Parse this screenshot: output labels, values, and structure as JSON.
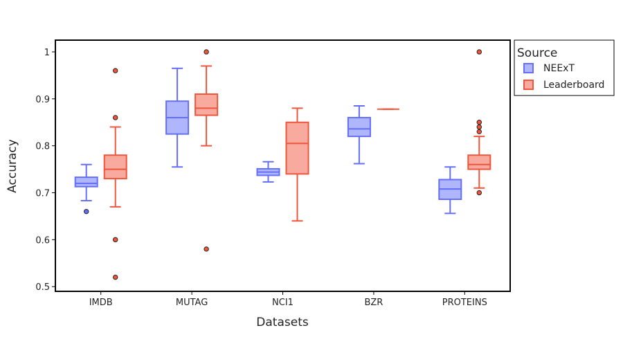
{
  "chart_data": {
    "type": "box",
    "title": "",
    "xlabel": "Datasets",
    "ylabel": "Accuracy",
    "ylim": [
      0.49,
      1.025
    ],
    "yticks": [
      0.5,
      0.6,
      0.7,
      0.8,
      0.9,
      1
    ],
    "ytick_labels": [
      "0.5",
      "0.6",
      "0.7",
      "0.8",
      "0.9",
      "1"
    ],
    "categories": [
      "IMDB",
      "MUTAG",
      "NCI1",
      "BZR",
      "PROTEINS"
    ],
    "legend": {
      "title": "Source",
      "position": "right"
    },
    "series": [
      {
        "name": "NEExT",
        "line_color": "#636efa",
        "fill_color": "#b0b6fc",
        "boxes": [
          {
            "category": "IMDB",
            "q1": 0.713,
            "median": 0.72,
            "q3": 0.733,
            "whisker_low": 0.683,
            "whisker_high": 0.76,
            "outliers": [
              0.66
            ]
          },
          {
            "category": "MUTAG",
            "q1": 0.825,
            "median": 0.86,
            "q3": 0.895,
            "whisker_low": 0.755,
            "whisker_high": 0.965,
            "outliers": []
          },
          {
            "category": "NCI1",
            "q1": 0.737,
            "median": 0.744,
            "q3": 0.751,
            "whisker_low": 0.723,
            "whisker_high": 0.766,
            "outliers": []
          },
          {
            "category": "BZR",
            "q1": 0.82,
            "median": 0.836,
            "q3": 0.86,
            "whisker_low": 0.762,
            "whisker_high": 0.885,
            "outliers": []
          },
          {
            "category": "PROTEINS",
            "q1": 0.686,
            "median": 0.708,
            "q3": 0.728,
            "whisker_low": 0.656,
            "whisker_high": 0.755,
            "outliers": []
          }
        ]
      },
      {
        "name": "Leaderboard",
        "line_color": "#ef553b",
        "fill_color": "#f7aa9d",
        "boxes": [
          {
            "category": "IMDB",
            "q1": 0.73,
            "median": 0.75,
            "q3": 0.78,
            "whisker_low": 0.67,
            "whisker_high": 0.84,
            "outliers": [
              0.96,
              0.86,
              0.6,
              0.52
            ]
          },
          {
            "category": "MUTAG",
            "q1": 0.865,
            "median": 0.88,
            "q3": 0.91,
            "whisker_low": 0.8,
            "whisker_high": 0.97,
            "outliers": [
              1.0,
              0.58
            ]
          },
          {
            "category": "NCI1",
            "q1": 0.74,
            "median": 0.805,
            "q3": 0.85,
            "whisker_low": 0.64,
            "whisker_high": 0.88,
            "outliers": []
          },
          {
            "category": "BZR",
            "q1": 0.878,
            "median": 0.878,
            "q3": 0.878,
            "whisker_low": 0.878,
            "whisker_high": 0.878,
            "outliers": []
          },
          {
            "category": "PROTEINS",
            "q1": 0.75,
            "median": 0.76,
            "q3": 0.78,
            "whisker_low": 0.71,
            "whisker_high": 0.82,
            "outliers": [
              1.0,
              0.85,
              0.84,
              0.83,
              0.7
            ]
          }
        ]
      }
    ]
  }
}
